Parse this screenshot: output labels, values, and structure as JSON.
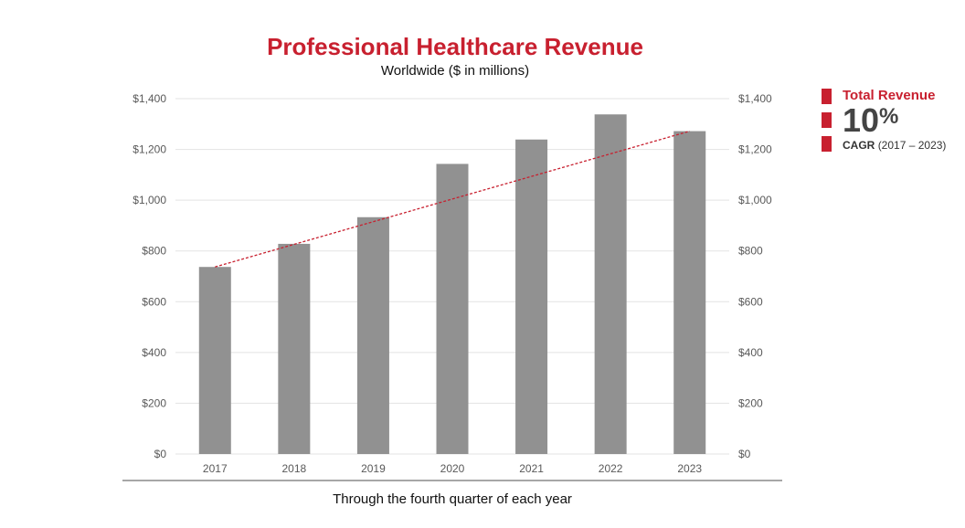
{
  "chart_data": {
    "type": "bar",
    "title": "Professional Healthcare Revenue",
    "subtitle": "Worldwide ($ in millions)",
    "xlabel": "Through the fourth quarter of each year",
    "ylabel": "",
    "categories": [
      "2017",
      "2018",
      "2019",
      "2020",
      "2021",
      "2022",
      "2023"
    ],
    "values": [
      737,
      828,
      933,
      1143,
      1239,
      1338,
      1272
    ],
    "ylim": [
      0,
      1400
    ],
    "yticks": [
      0,
      200,
      400,
      600,
      800,
      1000,
      1200,
      1400
    ],
    "ytick_labels": [
      "$0",
      "$200",
      "$400",
      "$600",
      "$800",
      "$1,000",
      "$1,200",
      "$1,400"
    ],
    "secondary_axis": true,
    "trendline": {
      "style": "dashed",
      "from": 737,
      "to": 1272
    },
    "grid": true,
    "bar_color": "#919191",
    "trend_color": "#c8202f"
  },
  "callout": {
    "label": "Total Revenue",
    "value": "10",
    "value_suffix": "%",
    "cagr_label": "CAGR",
    "cagr_range": "(2017 – 2023)"
  },
  "colors": {
    "accent": "#c8202f",
    "bar": "#919191",
    "grid": "#e3e3e3",
    "axis": "#8a8a8a"
  }
}
